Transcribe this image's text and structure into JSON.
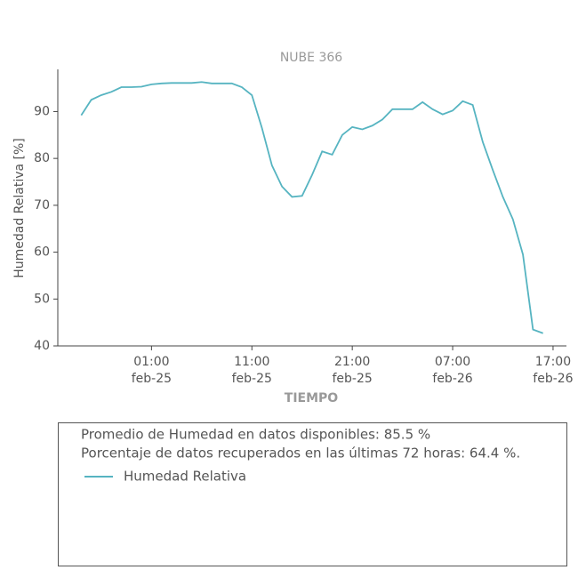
{
  "chart_data": {
    "type": "line",
    "title": "NUBE 366",
    "x_label": "TIEMPO",
    "y_label": "Humedad Relativa [%]",
    "x": [
      "feb-24 18:00",
      "feb-24 19:00",
      "feb-24 20:00",
      "feb-24 21:00",
      "feb-24 22:00",
      "feb-24 23:00",
      "feb-25 00:00",
      "feb-25 01:00",
      "feb-25 02:00",
      "feb-25 03:00",
      "feb-25 04:00",
      "feb-25 05:00",
      "feb-25 06:00",
      "feb-25 07:00",
      "feb-25 08:00",
      "feb-25 09:00",
      "feb-25 10:00",
      "feb-25 11:00",
      "feb-25 12:00",
      "feb-25 13:00",
      "feb-25 14:00",
      "feb-25 15:00",
      "feb-25 16:00",
      "feb-25 17:00",
      "feb-25 18:00",
      "feb-25 19:00",
      "feb-25 20:00",
      "feb-25 21:00",
      "feb-25 22:00",
      "feb-25 23:00",
      "feb-26 00:00",
      "feb-26 01:00",
      "feb-26 02:00",
      "feb-26 03:00",
      "feb-26 04:00",
      "feb-26 05:00",
      "feb-26 06:00",
      "feb-26 07:00",
      "feb-26 08:00",
      "feb-26 09:00",
      "feb-26 10:00",
      "feb-26 11:00",
      "feb-26 12:00",
      "feb-26 13:00",
      "feb-26 14:00",
      "feb-26 15:00",
      "feb-26 16:00"
    ],
    "series": [
      {
        "name": "Humedad Relativa",
        "color": "#56b4c1",
        "values": [
          89.2,
          92.5,
          93.5,
          94.2,
          95.2,
          95.2,
          95.3,
          95.8,
          96.0,
          96.1,
          96.1,
          96.1,
          96.3,
          96.0,
          96.0,
          96.0,
          95.2,
          93.5,
          86.5,
          78.5,
          74.0,
          71.8,
          72.0,
          76.5,
          81.5,
          80.8,
          85.0,
          86.7,
          86.2,
          87.0,
          88.3,
          90.5,
          90.5,
          90.5,
          92.0,
          90.5,
          89.4,
          90.2,
          92.2,
          91.4,
          83.5,
          77.5,
          71.8,
          67.0,
          59.5,
          43.5,
          42.7
        ]
      }
    ],
    "xlim": [
      "feb-24 15:40",
      "feb-26 18:20"
    ],
    "xticks": [
      {
        "value": "feb-25 01:00",
        "label": [
          "01:00",
          "feb-25"
        ]
      },
      {
        "value": "feb-25 11:00",
        "label": [
          "11:00",
          "feb-25"
        ]
      },
      {
        "value": "feb-25 21:00",
        "label": [
          "21:00",
          "feb-25"
        ]
      },
      {
        "value": "feb-26 07:00",
        "label": [
          "07:00",
          "feb-26"
        ]
      },
      {
        "value": "feb-26 17:00",
        "label": [
          "17:00",
          "feb-26"
        ]
      }
    ],
    "ylim": [
      40,
      99
    ],
    "yticks": [
      40,
      50,
      60,
      70,
      80,
      90
    ],
    "annotations": [
      "Promedio de Humedad en datos disponibles: 85.5 %",
      "Porcentaje de datos recuperados en las últimas 72 horas: 64.4 %."
    ]
  }
}
